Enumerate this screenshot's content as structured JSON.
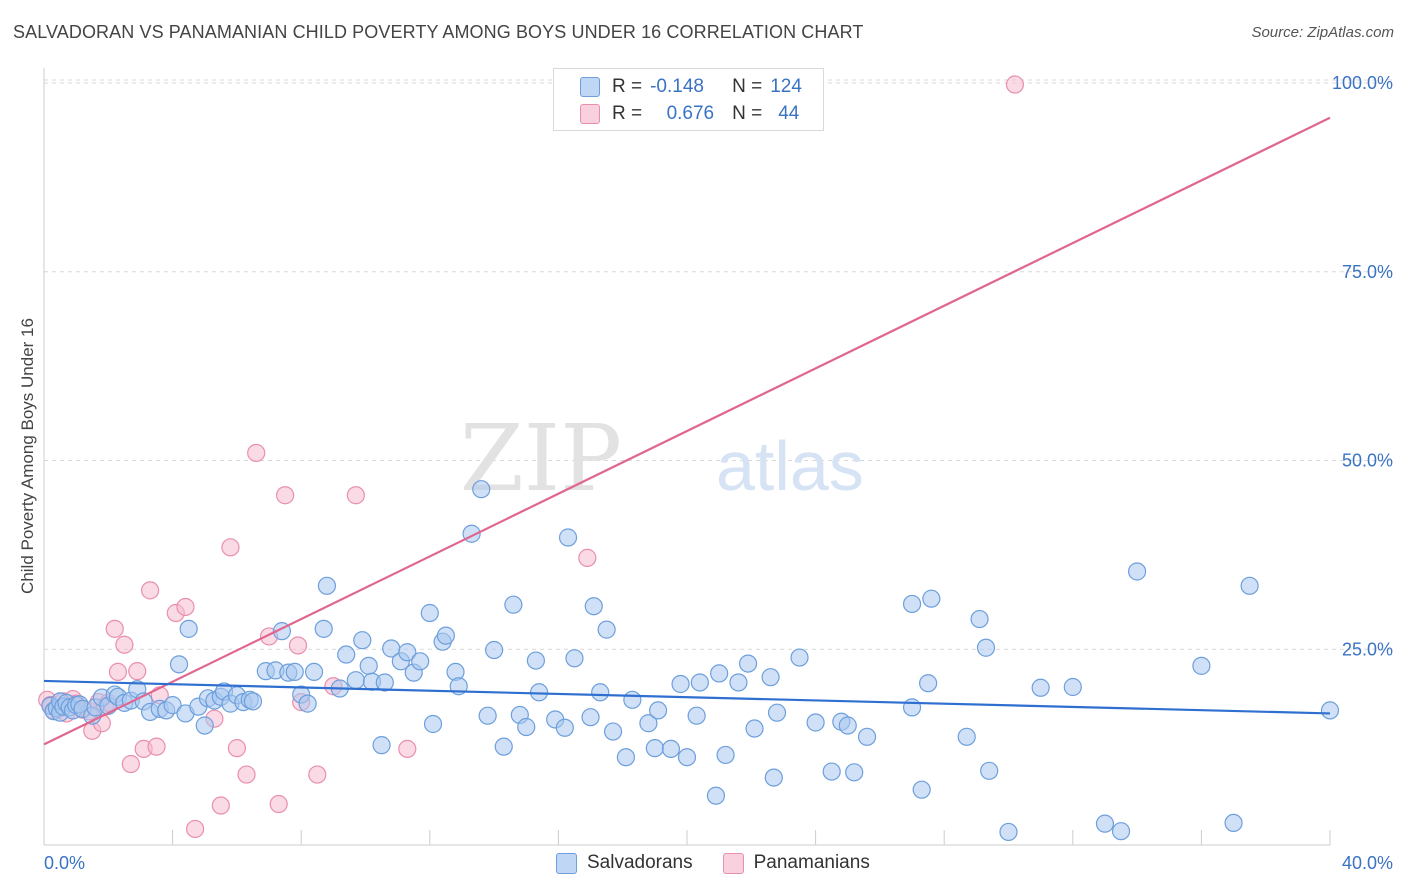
{
  "header": {
    "title": "SALVADORAN VS PANAMANIAN CHILD POVERTY AMONG BOYS UNDER 16 CORRELATION CHART",
    "source": "Source: ZipAtlas.com"
  },
  "legend": {
    "rows": [
      {
        "r_label": "R =",
        "r_value": "-0.148",
        "n_label": "N =",
        "n_value": "124"
      },
      {
        "r_label": "R =",
        "r_value": "0.676",
        "n_label": "N =",
        "n_value": "44"
      }
    ]
  },
  "bottom_legend": [
    "Salvadorans",
    "Panamanians"
  ],
  "watermark": {
    "part1": "ZIP",
    "part2": "atlas"
  },
  "colors": {
    "blue_fill": "#a9c8f0",
    "blue_stroke": "#6d9fdc",
    "blue_line": "#2f6fcf",
    "pink_fill": "#f6bcd0",
    "pink_stroke": "#e98fae",
    "pink_line": "#e0668f",
    "tick_text": "#3a73c4",
    "grid": "#d9d9d9"
  },
  "chart_data": {
    "type": "scatter",
    "title": "SALVADORAN VS PANAMANIAN CHILD POVERTY AMONG BOYS UNDER 16 CORRELATION CHART",
    "xlabel": "",
    "ylabel": "Child Poverty Among Boys Under 16",
    "xlim": [
      0,
      40
    ],
    "ylim": [
      0,
      100
    ],
    "x_tick_labels": [
      "0.0%",
      "40.0%"
    ],
    "y_tick_labels": [
      "25.0%",
      "50.0%",
      "75.0%",
      "100.0%"
    ],
    "y_ticks": [
      25,
      50,
      75,
      100
    ],
    "grid": true,
    "legend_position": "top-center",
    "series": [
      {
        "name": "Salvadorans",
        "R": -0.148,
        "N": 124,
        "trend": [
          [
            0,
            20.8
          ],
          [
            40,
            16.5
          ]
        ],
        "points": [
          [
            0.2,
            17.5
          ],
          [
            0.3,
            16.8
          ],
          [
            0.4,
            17.2
          ],
          [
            0.5,
            16.6
          ],
          [
            0.5,
            18.1
          ],
          [
            0.6,
            17.4
          ],
          [
            0.7,
            17.9
          ],
          [
            0.8,
            17.3
          ],
          [
            0.9,
            16.9
          ],
          [
            1.0,
            17.6
          ],
          [
            1.1,
            17.7
          ],
          [
            1.2,
            17.1
          ],
          [
            1.5,
            16.2
          ],
          [
            1.6,
            17.3
          ],
          [
            1.8,
            18.6
          ],
          [
            2.0,
            17.5
          ],
          [
            2.2,
            19.0
          ],
          [
            2.3,
            18.7
          ],
          [
            2.5,
            17.9
          ],
          [
            2.7,
            18.2
          ],
          [
            2.9,
            19.7
          ],
          [
            3.1,
            18.1
          ],
          [
            3.3,
            16.7
          ],
          [
            3.6,
            17.1
          ],
          [
            3.8,
            16.9
          ],
          [
            4.0,
            17.6
          ],
          [
            4.2,
            23.0
          ],
          [
            4.4,
            16.5
          ],
          [
            4.5,
            27.7
          ],
          [
            4.8,
            17.4
          ],
          [
            5.0,
            14.9
          ],
          [
            5.1,
            18.5
          ],
          [
            5.3,
            18.2
          ],
          [
            5.5,
            18.7
          ],
          [
            5.6,
            19.4
          ],
          [
            5.8,
            17.8
          ],
          [
            6.0,
            18.9
          ],
          [
            6.2,
            18.0
          ],
          [
            6.4,
            18.3
          ],
          [
            6.5,
            18.1
          ],
          [
            6.9,
            22.1
          ],
          [
            7.2,
            22.2
          ],
          [
            7.4,
            27.4
          ],
          [
            7.6,
            21.9
          ],
          [
            7.8,
            22.0
          ],
          [
            8.0,
            19.0
          ],
          [
            8.2,
            17.8
          ],
          [
            8.4,
            22.0
          ],
          [
            8.7,
            27.7
          ],
          [
            8.8,
            33.4
          ],
          [
            9.2,
            19.8
          ],
          [
            9.4,
            24.3
          ],
          [
            9.7,
            20.9
          ],
          [
            9.9,
            26.2
          ],
          [
            10.1,
            22.8
          ],
          [
            10.2,
            20.7
          ],
          [
            10.5,
            12.3
          ],
          [
            10.6,
            20.6
          ],
          [
            10.8,
            25.1
          ],
          [
            11.1,
            23.4
          ],
          [
            11.3,
            24.6
          ],
          [
            11.5,
            21.9
          ],
          [
            11.7,
            23.4
          ],
          [
            12.0,
            29.8
          ],
          [
            12.1,
            15.1
          ],
          [
            12.4,
            26.0
          ],
          [
            12.5,
            26.8
          ],
          [
            12.8,
            22.0
          ],
          [
            12.9,
            20.1
          ],
          [
            13.3,
            40.3
          ],
          [
            13.6,
            46.2
          ],
          [
            13.8,
            16.2
          ],
          [
            14.0,
            24.9
          ],
          [
            14.3,
            12.1
          ],
          [
            14.6,
            30.9
          ],
          [
            14.8,
            16.3
          ],
          [
            15.0,
            14.7
          ],
          [
            15.3,
            23.5
          ],
          [
            15.4,
            19.3
          ],
          [
            15.9,
            15.7
          ],
          [
            16.2,
            14.6
          ],
          [
            16.3,
            39.8
          ],
          [
            16.5,
            23.8
          ],
          [
            17.0,
            16.0
          ],
          [
            17.1,
            30.7
          ],
          [
            17.3,
            19.3
          ],
          [
            17.5,
            27.6
          ],
          [
            17.7,
            14.1
          ],
          [
            18.1,
            10.7
          ],
          [
            18.3,
            18.3
          ],
          [
            18.8,
            15.2
          ],
          [
            19.0,
            11.9
          ],
          [
            19.1,
            16.9
          ],
          [
            19.5,
            11.8
          ],
          [
            19.8,
            20.4
          ],
          [
            20.0,
            10.7
          ],
          [
            20.3,
            16.2
          ],
          [
            20.4,
            20.6
          ],
          [
            20.9,
            5.6
          ],
          [
            21.0,
            21.8
          ],
          [
            21.2,
            11.0
          ],
          [
            21.6,
            20.6
          ],
          [
            21.9,
            23.1
          ],
          [
            22.1,
            14.5
          ],
          [
            22.6,
            21.3
          ],
          [
            22.7,
            8.0
          ],
          [
            22.8,
            16.6
          ],
          [
            23.5,
            23.9
          ],
          [
            24.0,
            15.3
          ],
          [
            24.5,
            8.8
          ],
          [
            24.8,
            15.4
          ],
          [
            25.0,
            14.9
          ],
          [
            25.2,
            8.7
          ],
          [
            25.6,
            13.4
          ],
          [
            27.0,
            17.3
          ],
          [
            27.0,
            31.0
          ],
          [
            27.3,
            6.4
          ],
          [
            27.5,
            20.5
          ],
          [
            27.6,
            31.7
          ],
          [
            28.7,
            13.4
          ],
          [
            29.1,
            29.0
          ],
          [
            29.3,
            25.2
          ],
          [
            29.4,
            8.9
          ],
          [
            30.0,
            0.8
          ],
          [
            31.0,
            19.9
          ],
          [
            32.0,
            20.0
          ],
          [
            33.0,
            1.9
          ],
          [
            33.5,
            0.9
          ],
          [
            34.0,
            35.3
          ],
          [
            36.0,
            22.8
          ],
          [
            37.0,
            2.0
          ],
          [
            37.5,
            33.4
          ],
          [
            40.0,
            16.9
          ]
        ]
      },
      {
        "name": "Panamanians",
        "R": 0.676,
        "N": 44,
        "trend": [
          [
            0,
            12.4
          ],
          [
            40,
            95.4
          ]
        ],
        "points": [
          [
            0.1,
            18.3
          ],
          [
            0.2,
            17.6
          ],
          [
            0.3,
            16.9
          ],
          [
            0.5,
            17.2
          ],
          [
            0.6,
            18.1
          ],
          [
            0.7,
            16.5
          ],
          [
            0.9,
            18.4
          ],
          [
            1.0,
            17.8
          ],
          [
            1.2,
            17.0
          ],
          [
            1.4,
            16.8
          ],
          [
            1.5,
            14.2
          ],
          [
            1.7,
            18.0
          ],
          [
            1.8,
            15.2
          ],
          [
            1.9,
            17.4
          ],
          [
            2.0,
            17.9
          ],
          [
            2.2,
            27.7
          ],
          [
            2.3,
            22.0
          ],
          [
            2.5,
            25.6
          ],
          [
            2.7,
            9.8
          ],
          [
            2.9,
            22.1
          ],
          [
            3.1,
            11.8
          ],
          [
            3.3,
            32.8
          ],
          [
            3.5,
            12.1
          ],
          [
            3.6,
            18.9
          ],
          [
            4.1,
            29.8
          ],
          [
            4.4,
            30.6
          ],
          [
            4.7,
            1.2
          ],
          [
            5.3,
            15.8
          ],
          [
            5.5,
            4.3
          ],
          [
            5.8,
            38.5
          ],
          [
            6.0,
            11.9
          ],
          [
            6.3,
            8.4
          ],
          [
            6.6,
            51.0
          ],
          [
            7.0,
            26.7
          ],
          [
            7.3,
            4.5
          ],
          [
            7.5,
            45.4
          ],
          [
            7.9,
            25.5
          ],
          [
            8.0,
            18.0
          ],
          [
            8.5,
            8.4
          ],
          [
            9.0,
            20.1
          ],
          [
            9.7,
            45.4
          ],
          [
            11.3,
            11.8
          ],
          [
            16.9,
            37.1
          ],
          [
            30.2,
            99.8
          ]
        ]
      }
    ]
  }
}
